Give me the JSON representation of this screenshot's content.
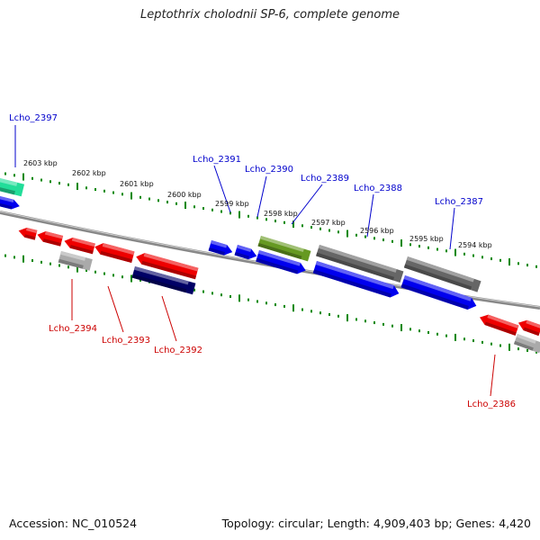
{
  "title": "Leptothrix cholodnii SP-6, complete genome",
  "footer": {
    "accession": "Accession: NC_010524",
    "summary": "Topology: circular; Length: 4,909,403 bp; Genes: 4,420"
  },
  "colors": {
    "forward_gene": "#0000ee",
    "reverse_gene": "#ee0000",
    "label_blue": "#0000cc",
    "label_red": "#cc0000",
    "tick": "#008800",
    "backbone": "#777777",
    "teal_feature": "#22dd99",
    "olive_feature": "#669922",
    "gray_feature": "#666666",
    "navy_feature": "#000066",
    "light_gray_feature": "#aaaaaa"
  },
  "kbp_labels": [
    "2603 kbp",
    "2602 kbp",
    "2601 kbp",
    "2600 kbp",
    "2599 kbp",
    "2598 kbp",
    "2597 kbp",
    "2596 kbp",
    "2595 kbp",
    "2594 kbp"
  ],
  "gene_labels": {
    "forward": [
      "Lcho_2397",
      "Lcho_2391",
      "Lcho_2390",
      "Lcho_2389",
      "Lcho_2388",
      "Lcho_2387"
    ],
    "reverse": [
      "Lcho_2394",
      "Lcho_2393",
      "Lcho_2392",
      "Lcho_2386"
    ]
  }
}
